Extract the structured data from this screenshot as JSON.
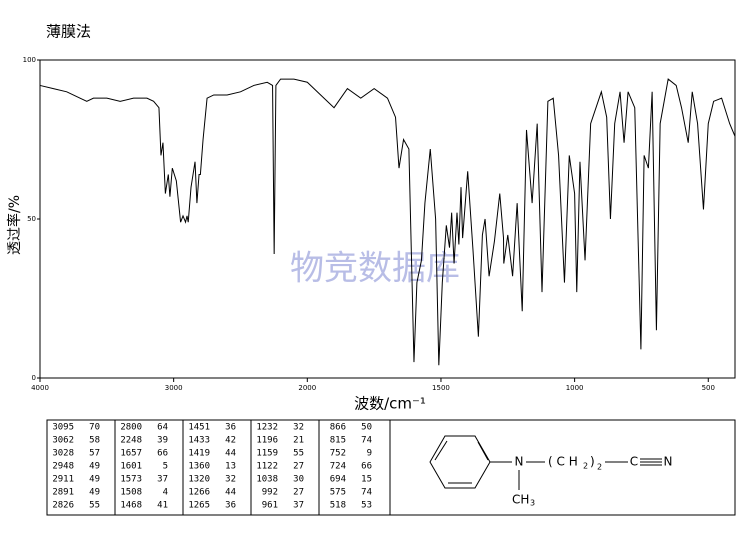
{
  "chart_data": {
    "type": "line",
    "title": "薄膜法",
    "xlabel": "波数/cm⁻¹",
    "ylabel": "透过率/%",
    "watermark": "物竞数据库",
    "xlim": [
      4000,
      400
    ],
    "xscale_break": 2000,
    "xticks": [
      4000,
      3000,
      2000,
      1500,
      1000,
      500
    ],
    "ylim": [
      0,
      100
    ],
    "yticks": [
      0,
      50,
      100
    ],
    "color": "#000000",
    "x": [
      4000,
      3900,
      3800,
      3700,
      3650,
      3600,
      3500,
      3400,
      3300,
      3200,
      3150,
      3110,
      3095,
      3080,
      3062,
      3040,
      3028,
      3010,
      2980,
      2948,
      2930,
      2911,
      2900,
      2891,
      2870,
      2840,
      2826,
      2810,
      2800,
      2780,
      2750,
      2700,
      2600,
      2500,
      2400,
      2300,
      2260,
      2248,
      2235,
      2200,
      2100,
      2000,
      1950,
      1900,
      1850,
      1800,
      1750,
      1700,
      1670,
      1657,
      1640,
      1620,
      1601,
      1590,
      1573,
      1560,
      1540,
      1520,
      1508,
      1495,
      1480,
      1468,
      1460,
      1451,
      1440,
      1433,
      1425,
      1419,
      1400,
      1380,
      1360,
      1345,
      1335,
      1320,
      1300,
      1280,
      1266,
      1265,
      1250,
      1232,
      1215,
      1196,
      1180,
      1159,
      1140,
      1122,
      1100,
      1080,
      1060,
      1038,
      1020,
      1000,
      992,
      980,
      961,
      940,
      900,
      880,
      866,
      850,
      830,
      815,
      800,
      775,
      752,
      740,
      724,
      710,
      694,
      680,
      650,
      620,
      600,
      575,
      560,
      540,
      518,
      500,
      480,
      450,
      420,
      400
    ],
    "values": [
      92,
      91,
      90,
      88,
      87,
      88,
      88,
      87,
      88,
      88,
      87,
      85,
      70,
      74,
      58,
      64,
      57,
      66,
      62,
      49,
      51,
      49,
      51,
      49,
      60,
      68,
      55,
      64,
      64,
      75,
      88,
      89,
      89,
      90,
      92,
      93,
      92,
      39,
      92,
      94,
      94,
      93,
      89,
      85,
      91,
      88,
      91,
      88,
      82,
      66,
      75,
      72,
      5,
      30,
      37,
      55,
      72,
      50,
      4,
      30,
      48,
      41,
      52,
      36,
      52,
      42,
      60,
      44,
      65,
      40,
      13,
      45,
      50,
      32,
      43,
      58,
      44,
      36,
      45,
      32,
      55,
      21,
      78,
      55,
      80,
      27,
      87,
      88,
      70,
      30,
      70,
      58,
      27,
      68,
      37,
      80,
      90,
      82,
      50,
      80,
      90,
      74,
      90,
      85,
      9,
      70,
      66,
      90,
      15,
      80,
      94,
      92,
      85,
      74,
      90,
      80,
      53,
      80,
      87,
      88,
      80,
      76
    ]
  },
  "peak_table": [
    [
      [
        3095,
        70
      ],
      [
        3062,
        58
      ],
      [
        3028,
        57
      ],
      [
        2948,
        49
      ],
      [
        2911,
        49
      ],
      [
        2891,
        49
      ],
      [
        2826,
        55
      ]
    ],
    [
      [
        2800,
        64
      ],
      [
        2248,
        39
      ],
      [
        1657,
        66
      ],
      [
        1601,
        5
      ],
      [
        1573,
        37
      ],
      [
        1508,
        4
      ],
      [
        1468,
        41
      ]
    ],
    [
      [
        1451,
        36
      ],
      [
        1433,
        42
      ],
      [
        1419,
        44
      ],
      [
        1360,
        13
      ],
      [
        1320,
        32
      ],
      [
        1266,
        44
      ],
      [
        1265,
        36
      ]
    ],
    [
      [
        1232,
        32
      ],
      [
        1196,
        21
      ],
      [
        1159,
        55
      ],
      [
        1122,
        27
      ],
      [
        1038,
        30
      ],
      [
        992,
        27
      ],
      [
        961,
        37
      ]
    ],
    [
      [
        866,
        50
      ],
      [
        815,
        74
      ],
      [
        752,
        9
      ],
      [
        724,
        66
      ],
      [
        694,
        15
      ],
      [
        575,
        74
      ],
      [
        518,
        53
      ]
    ]
  ],
  "structure": {
    "n1": "N",
    "methyl": "CH",
    "methyl_sub": "3",
    "chain": "( C H",
    "chain_sub": "2",
    "chain_close": ")",
    "n_sub": "2",
    "carbon": "C",
    "n2": "N"
  }
}
